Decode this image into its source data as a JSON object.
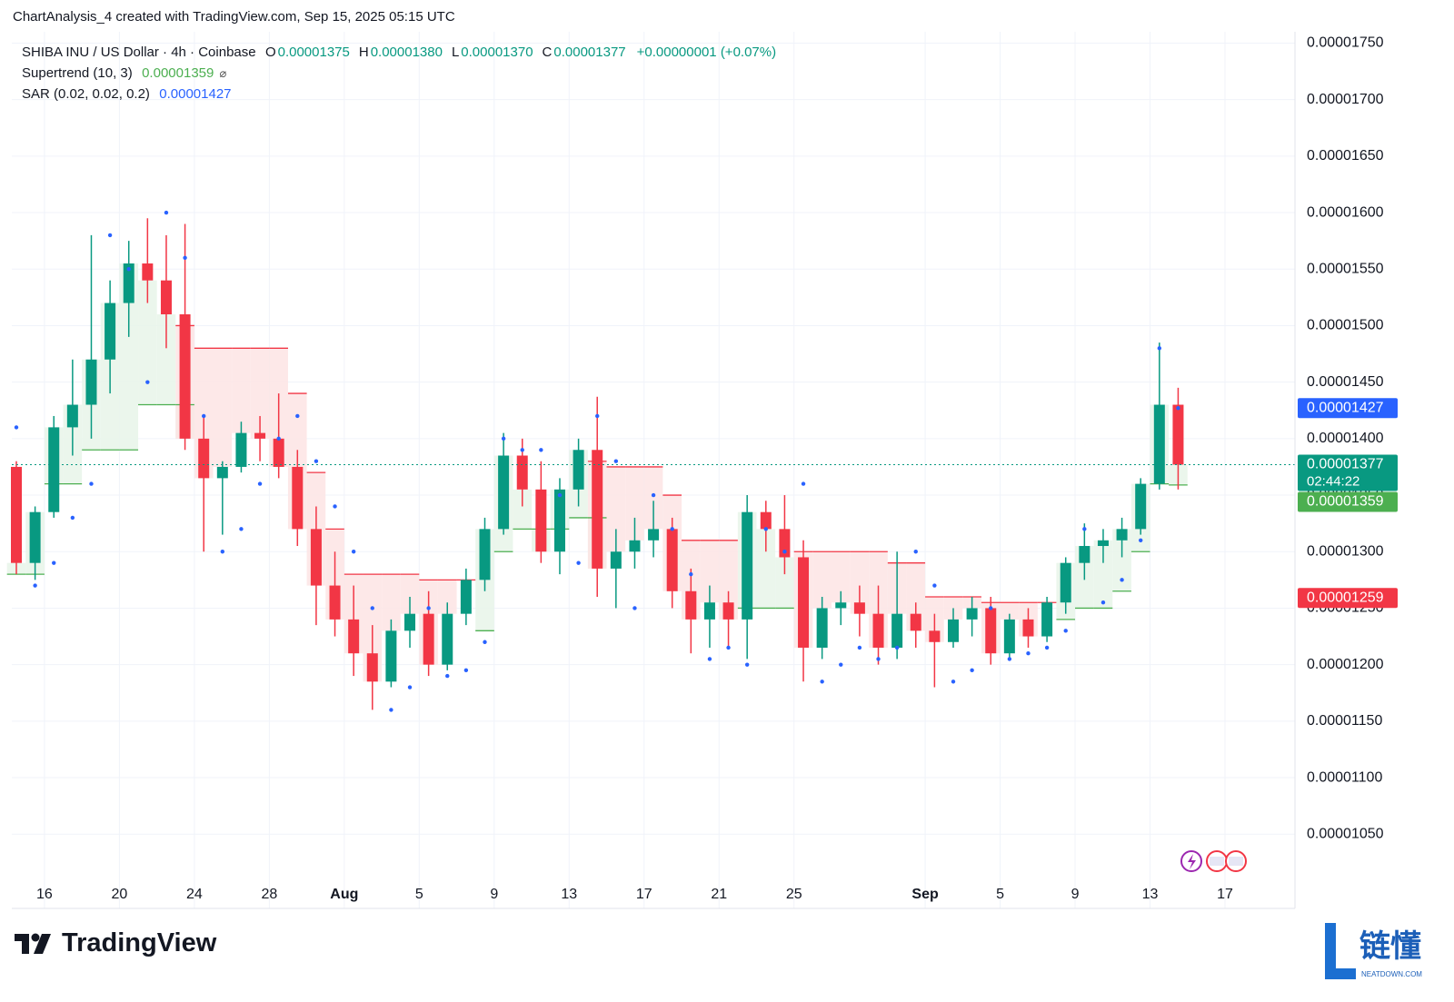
{
  "header": {
    "credit": "ChartAnalysis_4 created with TradingView.com, Sep 15, 2025 05:15 UTC"
  },
  "footer": {
    "brand": "TradingView"
  },
  "watermark": {
    "name": "链懂",
    "site": "NEATDOWN.COM"
  },
  "chart_data": {
    "type": "candlestick",
    "title": "SHIBA INU / US Dollar · 4h · Coinbase",
    "quote": [
      {
        "key": "O",
        "value": 1.375e-05,
        "label": "0.00001375"
      },
      {
        "key": "H",
        "value": 1.38e-05,
        "label": "0.00001380"
      },
      {
        "key": "L",
        "value": 1.37e-05,
        "label": "0.00001370"
      },
      {
        "key": "C",
        "value": 1.377e-05,
        "label": "0.00001377"
      }
    ],
    "change": "+0.00000001 (+0.07%)",
    "countdown": "02:44:22",
    "up_color": "#089981",
    "down_color": "#f23645",
    "x": [
      "Jul 14",
      "Jul 15",
      "Jul 16",
      "Jul 17",
      "Jul 18",
      "Jul 19",
      "Jul 20",
      "Jul 21",
      "Jul 22",
      "Jul 23",
      "Jul 24",
      "Jul 25",
      "Jul 26",
      "Jul 27",
      "Jul 28",
      "Jul 29",
      "Jul 30",
      "Jul 31",
      "Aug 1",
      "Aug 2",
      "Aug 3",
      "Aug 4",
      "Aug 5",
      "Aug 6",
      "Aug 7",
      "Aug 8",
      "Aug 9",
      "Aug 10",
      "Aug 11",
      "Aug 12",
      "Aug 13",
      "Aug 14",
      "Aug 15",
      "Aug 16",
      "Aug 17",
      "Aug 18",
      "Aug 19",
      "Aug 20",
      "Aug 21",
      "Aug 22",
      "Aug 23",
      "Aug 24",
      "Aug 25",
      "Aug 26",
      "Aug 27",
      "Aug 28",
      "Aug 29",
      "Aug 30",
      "Aug 31",
      "Sep 1",
      "Sep 2",
      "Sep 3",
      "Sep 4",
      "Sep 5",
      "Sep 6",
      "Sep 7",
      "Sep 8",
      "Sep 9",
      "Sep 10",
      "Sep 11",
      "Sep 12",
      "Sep 13",
      "Sep 14"
    ],
    "open": [
      1.375e-05,
      1.29e-05,
      1.335e-05,
      1.41e-05,
      1.43e-05,
      1.47e-05,
      1.52e-05,
      1.555e-05,
      1.54e-05,
      1.51e-05,
      1.4e-05,
      1.365e-05,
      1.375e-05,
      1.405e-05,
      1.4e-05,
      1.375e-05,
      1.32e-05,
      1.27e-05,
      1.24e-05,
      1.21e-05,
      1.185e-05,
      1.23e-05,
      1.245e-05,
      1.2e-05,
      1.245e-05,
      1.275e-05,
      1.32e-05,
      1.385e-05,
      1.355e-05,
      1.3e-05,
      1.355e-05,
      1.39e-05,
      1.285e-05,
      1.3e-05,
      1.31e-05,
      1.32e-05,
      1.265e-05,
      1.24e-05,
      1.255e-05,
      1.24e-05,
      1.335e-05,
      1.32e-05,
      1.295e-05,
      1.215e-05,
      1.25e-05,
      1.255e-05,
      1.245e-05,
      1.215e-05,
      1.245e-05,
      1.23e-05,
      1.22e-05,
      1.24e-05,
      1.25e-05,
      1.21e-05,
      1.24e-05,
      1.225e-05,
      1.255e-05,
      1.29e-05,
      1.305e-05,
      1.31e-05,
      1.32e-05,
      1.36e-05,
      1.43e-05
    ],
    "high": [
      1.38e-05,
      1.34e-05,
      1.42e-05,
      1.47e-05,
      1.58e-05,
      1.54e-05,
      1.575e-05,
      1.595e-05,
      1.58e-05,
      1.59e-05,
      1.42e-05,
      1.38e-05,
      1.415e-05,
      1.42e-05,
      1.44e-05,
      1.39e-05,
      1.34e-05,
      1.3e-05,
      1.27e-05,
      1.235e-05,
      1.24e-05,
      1.26e-05,
      1.265e-05,
      1.255e-05,
      1.285e-05,
      1.33e-05,
      1.405e-05,
      1.4e-05,
      1.38e-05,
      1.365e-05,
      1.4e-05,
      1.437e-05,
      1.32e-05,
      1.33e-05,
      1.345e-05,
      1.33e-05,
      1.285e-05,
      1.27e-05,
      1.265e-05,
      1.35e-05,
      1.345e-05,
      1.35e-05,
      1.31e-05,
      1.26e-05,
      1.265e-05,
      1.27e-05,
      1.27e-05,
      1.3e-05,
      1.255e-05,
      1.245e-05,
      1.25e-05,
      1.26e-05,
      1.26e-05,
      1.245e-05,
      1.25e-05,
      1.26e-05,
      1.295e-05,
      1.325e-05,
      1.32e-05,
      1.33e-05,
      1.365e-05,
      1.485e-05,
      1.445e-05
    ],
    "low": [
      1.28e-05,
      1.275e-05,
      1.33e-05,
      1.385e-05,
      1.4e-05,
      1.44e-05,
      1.49e-05,
      1.52e-05,
      1.48e-05,
      1.39e-05,
      1.3e-05,
      1.315e-05,
      1.37e-05,
      1.38e-05,
      1.365e-05,
      1.305e-05,
      1.235e-05,
      1.225e-05,
      1.19e-05,
      1.16e-05,
      1.18e-05,
      1.215e-05,
      1.19e-05,
      1.195e-05,
      1.235e-05,
      1.265e-05,
      1.315e-05,
      1.34e-05,
      1.29e-05,
      1.28e-05,
      1.34e-05,
      1.26e-05,
      1.25e-05,
      1.285e-05,
      1.295e-05,
      1.25e-05,
      1.21e-05,
      1.215e-05,
      1.215e-05,
      1.205e-05,
      1.3e-05,
      1.28e-05,
      1.185e-05,
      1.205e-05,
      1.235e-05,
      1.225e-05,
      1.2e-05,
      1.205e-05,
      1.215e-05,
      1.18e-05,
      1.215e-05,
      1.225e-05,
      1.2e-05,
      1.205e-05,
      1.215e-05,
      1.22e-05,
      1.245e-05,
      1.275e-05,
      1.29e-05,
      1.295e-05,
      1.315e-05,
      1.355e-05,
      1.355e-05
    ],
    "close": [
      1.29e-05,
      1.335e-05,
      1.41e-05,
      1.43e-05,
      1.47e-05,
      1.52e-05,
      1.555e-05,
      1.54e-05,
      1.51e-05,
      1.4e-05,
      1.365e-05,
      1.375e-05,
      1.405e-05,
      1.4e-05,
      1.375e-05,
      1.32e-05,
      1.27e-05,
      1.24e-05,
      1.21e-05,
      1.185e-05,
      1.23e-05,
      1.245e-05,
      1.2e-05,
      1.245e-05,
      1.275e-05,
      1.32e-05,
      1.385e-05,
      1.355e-05,
      1.3e-05,
      1.355e-05,
      1.39e-05,
      1.285e-05,
      1.3e-05,
      1.31e-05,
      1.32e-05,
      1.265e-05,
      1.24e-05,
      1.255e-05,
      1.24e-05,
      1.335e-05,
      1.32e-05,
      1.295e-05,
      1.215e-05,
      1.25e-05,
      1.255e-05,
      1.245e-05,
      1.215e-05,
      1.245e-05,
      1.23e-05,
      1.22e-05,
      1.24e-05,
      1.25e-05,
      1.21e-05,
      1.24e-05,
      1.225e-05,
      1.255e-05,
      1.29e-05,
      1.305e-05,
      1.31e-05,
      1.32e-05,
      1.36e-05,
      1.43e-05,
      1.377e-05
    ],
    "supertrend": {
      "label": "Supertrend (10, 3)",
      "up_color": "#4caf50",
      "down_color": "#f23645",
      "lower": [
        1.28e-05,
        1.28e-05,
        1.36e-05,
        1.36e-05,
        1.39e-05,
        1.39e-05,
        1.39e-05,
        1.43e-05,
        1.43e-05,
        1.43e-05,
        null,
        null,
        null,
        null,
        null,
        null,
        null,
        null,
        null,
        null,
        null,
        null,
        null,
        null,
        null,
        1.23e-05,
        1.3e-05,
        1.32e-05,
        1.32e-05,
        1.32e-05,
        1.33e-05,
        1.33e-05,
        null,
        null,
        null,
        null,
        null,
        null,
        null,
        1.25e-05,
        1.25e-05,
        1.25e-05,
        null,
        null,
        null,
        null,
        null,
        null,
        null,
        null,
        null,
        null,
        null,
        null,
        null,
        null,
        1.24e-05,
        1.25e-05,
        1.25e-05,
        1.265e-05,
        1.3e-05,
        1.36e-05,
        1.359e-05
      ],
      "upper": [
        null,
        null,
        null,
        null,
        null,
        null,
        null,
        null,
        null,
        1.5e-05,
        1.48e-05,
        1.48e-05,
        1.48e-05,
        1.48e-05,
        1.48e-05,
        1.44e-05,
        1.37e-05,
        1.32e-05,
        1.28e-05,
        1.28e-05,
        1.28e-05,
        1.28e-05,
        1.275e-05,
        1.275e-05,
        1.275e-05,
        null,
        null,
        null,
        null,
        null,
        null,
        1.38e-05,
        1.375e-05,
        1.375e-05,
        1.375e-05,
        1.35e-05,
        1.31e-05,
        1.31e-05,
        1.31e-05,
        null,
        null,
        null,
        1.3e-05,
        1.3e-05,
        1.3e-05,
        1.3e-05,
        1.3e-05,
        1.29e-05,
        1.29e-05,
        1.26e-05,
        1.26e-05,
        1.26e-05,
        1.255e-05,
        1.255e-05,
        1.255e-05,
        1.255e-05,
        null,
        null,
        null,
        null,
        null,
        null,
        null
      ]
    },
    "sar": {
      "label": "SAR (0.02, 0.02, 0.2)",
      "color": "#2962ff",
      "values": [
        1.41e-05,
        1.27e-05,
        1.29e-05,
        1.33e-05,
        1.36e-05,
        1.58e-05,
        1.55e-05,
        1.45e-05,
        1.6e-05,
        1.56e-05,
        1.42e-05,
        1.3e-05,
        1.32e-05,
        1.36e-05,
        1.4e-05,
        1.42e-05,
        1.38e-05,
        1.34e-05,
        1.3e-05,
        1.25e-05,
        1.16e-05,
        1.18e-05,
        1.25e-05,
        1.19e-05,
        1.195e-05,
        1.22e-05,
        1.4e-05,
        1.39e-05,
        1.39e-05,
        1.35e-05,
        1.29e-05,
        1.42e-05,
        1.38e-05,
        1.25e-05,
        1.35e-05,
        1.32e-05,
        1.28e-05,
        1.205e-05,
        1.215e-05,
        1.2e-05,
        1.32e-05,
        1.3e-05,
        1.36e-05,
        1.185e-05,
        1.2e-05,
        1.215e-05,
        1.205e-05,
        1.215e-05,
        1.3e-05,
        1.27e-05,
        1.185e-05,
        1.195e-05,
        1.25e-05,
        1.205e-05,
        1.21e-05,
        1.215e-05,
        1.23e-05,
        1.32e-05,
        1.255e-05,
        1.275e-05,
        1.31e-05,
        1.48e-05,
        1.427e-05
      ]
    },
    "price_lines": [
      {
        "value": 1.259e-05,
        "label": "0.00001259",
        "color": "#f23645"
      }
    ],
    "ylim": [
      1.01e-05,
      1.76e-05
    ],
    "yticks": [
      {
        "value": 1.05e-05,
        "label": "0.00001050"
      },
      {
        "value": 1.1e-05,
        "label": "0.00001100"
      },
      {
        "value": 1.15e-05,
        "label": "0.00001150"
      },
      {
        "value": 1.2e-05,
        "label": "0.00001200"
      },
      {
        "value": 1.25e-05,
        "label": "0.00001250"
      },
      {
        "value": 1.3e-05,
        "label": "0.00001300"
      },
      {
        "value": 1.35e-05,
        "label": "0.00001350"
      },
      {
        "value": 1.4e-05,
        "label": "0.00001400"
      },
      {
        "value": 1.45e-05,
        "label": "0.00001450"
      },
      {
        "value": 1.5e-05,
        "label": "0.00001500"
      },
      {
        "value": 1.55e-05,
        "label": "0.00001550"
      },
      {
        "value": 1.6e-05,
        "label": "0.00001600"
      },
      {
        "value": 1.65e-05,
        "label": "0.00001650"
      },
      {
        "value": 1.7e-05,
        "label": "0.00001700"
      },
      {
        "value": 1.75e-05,
        "label": "0.00001750"
      }
    ],
    "xticks": [
      {
        "value": "Jul 16",
        "label": "16"
      },
      {
        "value": "Jul 20",
        "label": "20"
      },
      {
        "value": "Jul 24",
        "label": "24"
      },
      {
        "value": "Jul 28",
        "label": "28"
      },
      {
        "value": "Aug 1",
        "label": "Aug"
      },
      {
        "value": "Aug 5",
        "label": "5"
      },
      {
        "value": "Aug 9",
        "label": "9"
      },
      {
        "value": "Aug 13",
        "label": "13"
      },
      {
        "value": "Aug 17",
        "label": "17"
      },
      {
        "value": "Aug 21",
        "label": "21"
      },
      {
        "value": "Aug 25",
        "label": "25"
      },
      {
        "value": "Sep 1",
        "label": "Sep"
      },
      {
        "value": "Sep 5",
        "label": "5"
      },
      {
        "value": "Sep 9",
        "label": "9"
      },
      {
        "value": "Sep 13",
        "label": "13"
      },
      {
        "value": "Sep 17",
        "label": "17"
      }
    ],
    "grid": true
  }
}
